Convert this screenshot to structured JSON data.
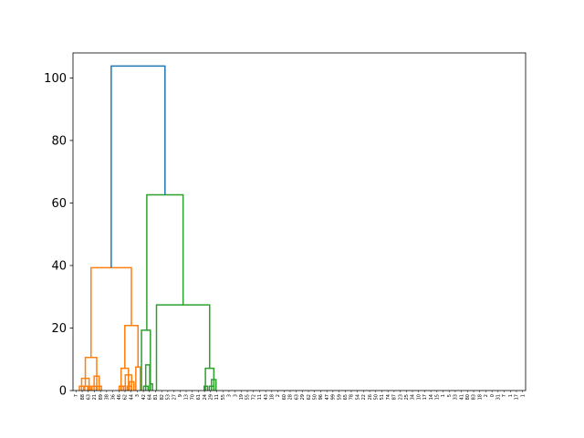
{
  "chart_data": {
    "type": "dendrogram",
    "title": "",
    "xlabel": "",
    "ylabel": "",
    "ylim": [
      0,
      108
    ],
    "yticks": [
      0,
      20,
      40,
      60,
      80,
      100
    ],
    "ytick_labels": [
      "0",
      "20",
      "40",
      "60",
      "80",
      "100"
    ],
    "grid": false,
    "leaf_labels": [
      "7",
      "88",
      "63",
      "21",
      "89",
      "38",
      "36",
      "46",
      "62",
      "44",
      "3",
      "42",
      "64",
      "81",
      "82",
      "53",
      "27",
      "9",
      "13",
      "70",
      "61",
      "24",
      "29",
      "11",
      "55",
      "3",
      "3",
      "19",
      "55",
      "72",
      "11",
      "43",
      "18",
      "2",
      "60",
      "28",
      "63",
      "29",
      "62",
      "50",
      "96",
      "47",
      "99",
      "59",
      "65",
      "78",
      "54",
      "22",
      "26",
      "50",
      "51",
      "74",
      "87",
      "23",
      "25",
      "34",
      "10",
      "17",
      "14",
      "15",
      "1",
      "5",
      "33",
      "41",
      "80",
      "83",
      "18",
      "2",
      "0",
      "31",
      "7",
      "1",
      "17",
      "1"
    ],
    "colors": {
      "blue": "#1f77b4",
      "orange": "#ff7f0e",
      "green": "#2ca02c"
    },
    "links": [
      {
        "x": [
          10.5,
          10.5,
          17.7,
          17.7
        ],
        "y": [
          0,
          1.4,
          1.4,
          0
        ],
        "color": "orange"
      },
      {
        "x": [
          19.2,
          19.2,
          25.8,
          25.8
        ],
        "y": [
          0,
          1.4,
          1.4,
          0
        ],
        "color": "orange"
      },
      {
        "x": [
          24.0,
          24.0,
          28.5,
          28.5
        ],
        "y": [
          0,
          1.4,
          1.4,
          0
        ],
        "color": "orange"
      },
      {
        "x": [
          14.1,
          14.1,
          26.3,
          26.3
        ],
        "y": [
          0,
          3.9,
          3.9,
          0
        ],
        "color": "orange"
      },
      {
        "x": [
          31.0,
          31.0,
          38.0,
          38.0
        ],
        "y": [
          0,
          1.4,
          1.4,
          0
        ],
        "color": "orange"
      },
      {
        "x": [
          39.5,
          39.5,
          46.5,
          46.5
        ],
        "y": [
          0,
          1.4,
          1.4,
          0
        ],
        "color": "orange"
      },
      {
        "x": [
          34.5,
          34.5,
          43.0,
          43.0
        ],
        "y": [
          0,
          4.6,
          4.6,
          0
        ],
        "color": "orange"
      },
      {
        "x": [
          20.2,
          20.2,
          38.8,
          38.8
        ],
        "y": [
          1.4,
          10.6,
          10.6,
          1.4
        ],
        "color": "orange"
      },
      {
        "x": [
          75.5,
          75.5,
          82.5,
          82.5
        ],
        "y": [
          0,
          1.4,
          1.4,
          0
        ],
        "color": "orange"
      },
      {
        "x": [
          79.0,
          79.0,
          86.0,
          86.0
        ],
        "y": [
          0,
          1.4,
          1.4,
          0
        ],
        "color": "orange"
      },
      {
        "x": [
          89.0,
          89.0,
          95.5,
          95.5
        ],
        "y": [
          0,
          1.4,
          1.4,
          0
        ],
        "color": "orange"
      },
      {
        "x": [
          92.2,
          92.2,
          99.6,
          99.6
        ],
        "y": [
          0,
          2.8,
          2.8,
          0
        ],
        "color": "orange"
      },
      {
        "x": [
          85.5,
          85.5,
          95.9,
          95.9
        ],
        "y": [
          0,
          5.0,
          5.0,
          0
        ],
        "color": "orange"
      },
      {
        "x": [
          78.6,
          78.6,
          90.7,
          90.7
        ],
        "y": [
          0,
          7.1,
          7.1,
          0
        ],
        "color": "orange"
      },
      {
        "x": [
          102.7,
          102.7,
          110.0,
          110.0
        ],
        "y": [
          0,
          7.5,
          7.5,
          0
        ],
        "color": "orange"
      },
      {
        "x": [
          84.7,
          84.7,
          106.3,
          106.3
        ],
        "y": [
          7.1,
          20.8,
          20.8,
          7.5
        ],
        "color": "orange"
      },
      {
        "x": [
          29.5,
          29.5,
          95.5,
          95.5
        ],
        "y": [
          10.6,
          39.3,
          39.3,
          20.8
        ],
        "color": "orange"
      },
      {
        "x": [
          115.5,
          115.5,
          122.8,
          122.8
        ],
        "y": [
          0,
          1.4,
          1.4,
          0
        ],
        "color": "green"
      },
      {
        "x": [
          118.9,
          118.9,
          125.5,
          125.5
        ],
        "y": [
          0,
          8.2,
          8.2,
          0
        ],
        "color": "green"
      },
      {
        "x": [
          126.1,
          126.1,
          130.0,
          130.0
        ],
        "y": [
          0,
          2.1,
          2.1,
          0
        ],
        "color": "green"
      },
      {
        "x": [
          112.0,
          112.0,
          126.5,
          126.5
        ],
        "y": [
          0,
          19.3,
          19.3,
          0
        ],
        "color": "green"
      },
      {
        "x": [
          214.5,
          214.5,
          220.0,
          220.0
        ],
        "y": [
          0,
          1.4,
          1.4,
          0
        ],
        "color": "green"
      },
      {
        "x": [
          223.0,
          223.0,
          230.5,
          230.5
        ],
        "y": [
          0,
          1.4,
          1.4,
          0
        ],
        "color": "green"
      },
      {
        "x": [
          226.5,
          226.5,
          233.8,
          233.8
        ],
        "y": [
          0,
          3.5,
          3.5,
          0
        ],
        "color": "green"
      },
      {
        "x": [
          216.5,
          216.5,
          230.3,
          230.3
        ],
        "y": [
          0,
          7.1,
          7.1,
          0
        ],
        "color": "green"
      },
      {
        "x": [
          136.5,
          136.5,
          223.4,
          223.4
        ],
        "y": [
          0,
          27.4,
          27.4,
          7.1
        ],
        "color": "green"
      },
      {
        "x": [
          120.7,
          120.7,
          180.0,
          180.0
        ],
        "y": [
          19.3,
          62.6,
          62.6,
          27.4
        ],
        "color": "green"
      },
      {
        "x": [
          62.5,
          62.5,
          150.4,
          150.4
        ],
        "y": [
          39.3,
          103.8,
          103.8,
          62.6
        ],
        "color": "blue"
      }
    ]
  }
}
